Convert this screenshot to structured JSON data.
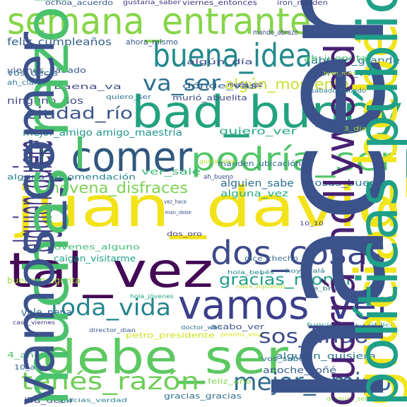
{
  "words": [
    {
      "text": "juan_david",
      "color": "#f2e21a"
    },
    {
      "text": "bad_bunny",
      "color": "#23a27f"
    },
    {
      "text": "tal_vez",
      "color": "#440a55"
    },
    {
      "text": "debe_ser",
      "color": "#5dc862"
    },
    {
      "text": "semana_entrante",
      "color": "#86d549"
    },
    {
      "text": "vamos_ver",
      "color": "#3b3f8a"
    },
    {
      "text": "dos_cosas",
      "color": "#3d4a89"
    },
    {
      "text": "ir_comer",
      "color": "#30577e"
    },
    {
      "text": "podría_ser",
      "color": "#52c569"
    },
    {
      "text": "buena_idea",
      "color": "#22898c"
    },
    {
      "text": "mejor_amigo",
      "color": "#316a8e"
    },
    {
      "text": "tenés_razón",
      "color": "#6ece58"
    },
    {
      "text": "toda_vida",
      "color": "#24858e"
    },
    {
      "text": "sos_lindo",
      "color": "#3a4a8c"
    },
    {
      "text": "gracias_monín",
      "color": "#219e8a"
    },
    {
      "text": "va_ser",
      "color": "#2c6e8e"
    },
    {
      "text": "novena_disfraces",
      "color": "#7ad151"
    },
    {
      "text": "algún_momento",
      "color": "#c5df2a"
    },
    {
      "text": "ciudad_río",
      "color": "#3a558b"
    },
    {
      "text": "feliz_cumpleaños",
      "color": "#34608d"
    },
    {
      "text": "mejor_amigo amigo_maestría",
      "color": "#1f958b"
    },
    {
      "text": "quiero_ver",
      "color": "#25a884"
    },
    {
      "text": "alguna_recomendación",
      "color": "#277f8e"
    },
    {
      "text": "alguien_sabe",
      "color": "#2d6f8e"
    },
    {
      "text": "cosas_buena",
      "color": "#2a788e"
    },
    {
      "text": "ver_sale",
      "color": "#38b977"
    },
    {
      "text": "alguna_vez",
      "color": "#25ac82"
    },
    {
      "text": "manden_ubicación",
      "color": "#2f6b8e"
    },
    {
      "text": "ninguno_dos",
      "color": "#3f4889"
    },
    {
      "text": "viernes_sábado",
      "color": "#38588c"
    },
    {
      "text": "abrazo_grande",
      "color": "#2c728e"
    },
    {
      "text": "baena_va",
      "color": "#3e4c8a"
    },
    {
      "text": "viernes_voy",
      "color": "#35608d"
    },
    {
      "text": "ah_jueputa",
      "color": "#4ac16d"
    },
    {
      "text": "algún_día",
      "color": "#3d4d8a"
    },
    {
      "text": "dónde_vas",
      "color": "#34618d"
    },
    {
      "text": "jóvenes_alguno",
      "color": "#3fbc73"
    },
    {
      "text": "caigan_visitarme",
      "color": "#1fa188"
    },
    {
      "text": "buena_pregunta",
      "color": "#a2da37"
    },
    {
      "text": "vale_pena",
      "color": "#2f6c8e"
    },
    {
      "text": "petro_presidente",
      "color": "#d0e11c"
    },
    {
      "text": "alguien_quisiera",
      "color": "#2b748e"
    },
    {
      "text": "acabo_ver",
      "color": "#3b528b"
    },
    {
      "text": "anoche_soñé",
      "color": "#355f8d"
    },
    {
      "text": "vos_sabés",
      "color": "#2d718e"
    },
    {
      "text": "gracias_gracias",
      "color": "#2d718e"
    },
    {
      "text": "feliz_año",
      "color": "#7ad151"
    },
    {
      "text": "4_años",
      "color": "#4ec36b"
    },
    {
      "text": "10_años",
      "color": "#31688e"
    },
    {
      "text": "iba_decir",
      "color": "#3e4989"
    },
    {
      "text": "gracias_verdad",
      "color": "#26828e"
    },
    {
      "text": "después_ser",
      "color": "#90d743"
    },
    {
      "text": "dice_checho",
      "color": "#31688e"
    },
    {
      "text": "dos_oro",
      "color": "#443983"
    },
    {
      "text": "10_10",
      "color": "#3e4989"
    },
    {
      "text": "hola_bebés",
      "color": "#24868e"
    },
    {
      "text": "hoy_ojalá",
      "color": "#29798e"
    },
    {
      "text": "cobra_impuestos",
      "color": "#b5de2b"
    },
    {
      "text": "ve_brutal",
      "color": "#2e6e8e"
    },
    {
      "text": "hola_jóvenes",
      "color": "#20a386"
    },
    {
      "text": "doctor_who",
      "color": "#2c728e"
    },
    {
      "text": "director_dian",
      "color": "#38588c"
    },
    {
      "text": "funcionario_público",
      "color": "#1f998a"
    },
    {
      "text": "pronto_voy",
      "color": "#d8e219"
    },
    {
      "text": "caso_viernes",
      "color": "#46327e"
    },
    {
      "text": "querrá_hollywood",
      "color": "#482173"
    },
    {
      "text": "gracias_bebé",
      "color": "#f1e51d"
    },
    {
      "text": "hacer_ejercicio pregunta_cuál",
      "color": "#3b528b"
    },
    {
      "text": "alguien_quiere",
      "color": "#443a83"
    },
    {
      "text": "muchas_razones",
      "color": "#4ac16d"
    },
    {
      "text": "vamos_comer",
      "color": "#3b528b"
    },
    {
      "text": "ochoa_acuerdo",
      "color": "#39568c"
    },
    {
      "text": "gustaría_saber",
      "color": "#453781"
    },
    {
      "text": "viernes_entonces",
      "color": "#46327e"
    },
    {
      "text": "iron_maiden",
      "color": "#414487"
    },
    {
      "text": "mando_abrazo",
      "color": "#3e4989"
    },
    {
      "text": "ahora_mismo",
      "color": "#39568c"
    },
    {
      "text": "vos_decís",
      "color": "#31688e"
    },
    {
      "text": "ah_claro",
      "color": "#2c728e"
    },
    {
      "text": "buen_material",
      "color": "#bddf26"
    },
    {
      "text": "quiero_ser",
      "color": "#2d708e"
    },
    {
      "text": "murió_abuelita",
      "color": "#3e4a89"
    },
    {
      "text": "mucha_paz",
      "color": "#443983"
    },
    {
      "text": "sábado_sábado",
      "color": "#2a778e"
    },
    {
      "text": "3_días",
      "color": "#a8db34"
    },
    {
      "text": "gusta_idea",
      "color": "#b2dd2d"
    },
    {
      "text": "ah_bueno",
      "color": "#3e4989"
    },
    {
      "text": "vez_hace",
      "color": "#38588c"
    },
    {
      "text": "man_debe",
      "color": "#3b528b"
    },
    {
      "text": "políticas_públicas",
      "color": "#1fa088"
    }
  ]
}
